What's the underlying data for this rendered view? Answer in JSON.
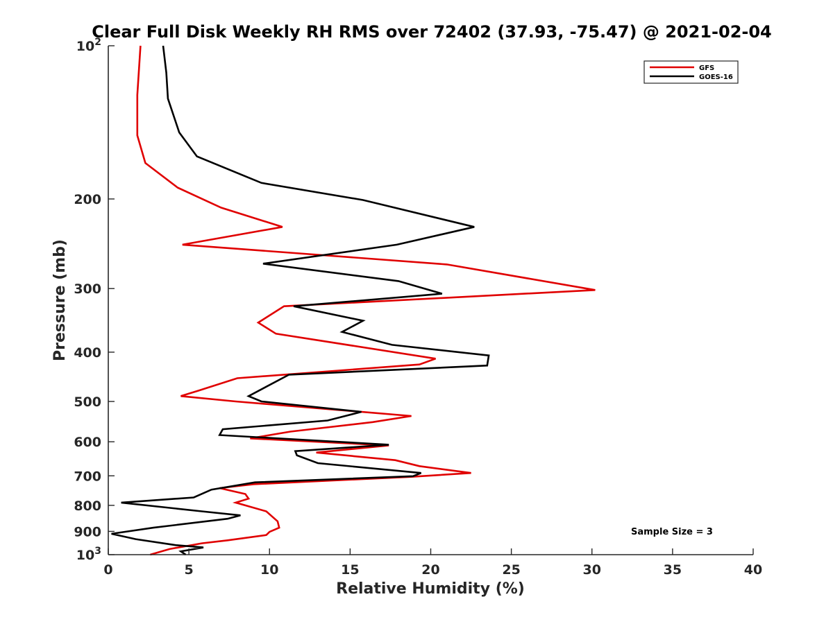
{
  "chart_data": {
    "type": "line",
    "title": "Clear Full Disk Weekly RH RMS over 72402 (37.93, -75.47) @ 2021-02-04",
    "xlabel": "Relative Humidity (%)",
    "ylabel": "Pressure (mb)",
    "xlim": [
      0,
      40
    ],
    "ylim": [
      100,
      1000
    ],
    "yscale": "log",
    "y_reversed": true,
    "grid": false,
    "x_ticks": [
      0,
      5,
      10,
      15,
      20,
      25,
      30,
      35,
      40
    ],
    "y_ticks": [
      {
        "value": 100,
        "base": "10",
        "exp": "2"
      },
      {
        "value": 200,
        "label": "200"
      },
      {
        "value": 300,
        "label": "300"
      },
      {
        "value": 400,
        "label": "400"
      },
      {
        "value": 500,
        "label": "500"
      },
      {
        "value": 600,
        "label": "600"
      },
      {
        "value": 700,
        "label": "700"
      },
      {
        "value": 800,
        "label": "800"
      },
      {
        "value": 900,
        "label": "900"
      },
      {
        "value": 1000,
        "base": "10",
        "exp": "3"
      }
    ],
    "legend_position": "top-right",
    "annotation": "Sample Size = 3",
    "series": [
      {
        "name": "GFS",
        "color": "#e00000",
        "points": [
          [
            2.0,
            100
          ],
          [
            1.8,
            125
          ],
          [
            1.8,
            150
          ],
          [
            2.3,
            170
          ],
          [
            4.3,
            190
          ],
          [
            7.0,
            208
          ],
          [
            10.8,
            227
          ],
          [
            4.6,
            246
          ],
          [
            21.0,
            269
          ],
          [
            30.2,
            302
          ],
          [
            10.9,
            325
          ],
          [
            9.3,
            350
          ],
          [
            10.4,
            368
          ],
          [
            20.3,
            412
          ],
          [
            19.3,
            423
          ],
          [
            8.0,
            450
          ],
          [
            5.6,
            476
          ],
          [
            4.5,
            488
          ],
          [
            7.9,
            500
          ],
          [
            18.8,
            534
          ],
          [
            16.4,
            549
          ],
          [
            11.3,
            573
          ],
          [
            8.8,
            591
          ],
          [
            17.4,
            610
          ],
          [
            12.9,
            630
          ],
          [
            17.8,
            652
          ],
          [
            19.3,
            670
          ],
          [
            22.5,
            691
          ],
          [
            18.8,
            703
          ],
          [
            9.0,
            727
          ],
          [
            6.9,
            740
          ],
          [
            8.5,
            760
          ],
          [
            8.7,
            776
          ],
          [
            7.9,
            790
          ],
          [
            9.8,
            822
          ],
          [
            10.5,
            860
          ],
          [
            10.6,
            885
          ],
          [
            10.0,
            902
          ],
          [
            9.8,
            915
          ],
          [
            7.4,
            937
          ],
          [
            5.8,
            950
          ],
          [
            3.8,
            975
          ],
          [
            2.6,
            1000
          ]
        ]
      },
      {
        "name": "GOES-16",
        "color": "#000000",
        "points": [
          [
            3.4,
            100
          ],
          [
            3.6,
            113
          ],
          [
            3.7,
            127
          ],
          [
            4.4,
            148
          ],
          [
            5.5,
            165
          ],
          [
            9.5,
            186
          ],
          [
            15.8,
            201
          ],
          [
            22.7,
            227
          ],
          [
            17.9,
            246
          ],
          [
            9.6,
            268
          ],
          [
            18.0,
            290
          ],
          [
            20.7,
            307
          ],
          [
            11.5,
            325
          ],
          [
            15.8,
            347
          ],
          [
            14.5,
            365
          ],
          [
            17.6,
            387
          ],
          [
            23.6,
            406
          ],
          [
            23.5,
            425
          ],
          [
            11.2,
            443
          ],
          [
            8.7,
            488
          ],
          [
            9.5,
            500
          ],
          [
            15.7,
            524
          ],
          [
            13.6,
            545
          ],
          [
            7.1,
            567
          ],
          [
            6.9,
            582
          ],
          [
            17.4,
            608
          ],
          [
            11.6,
            626
          ],
          [
            11.7,
            638
          ],
          [
            13.0,
            661
          ],
          [
            19.4,
            691
          ],
          [
            18.9,
            701
          ],
          [
            9.1,
            721
          ],
          [
            6.4,
            745
          ],
          [
            5.3,
            772
          ],
          [
            0.8,
            790
          ],
          [
            5.8,
            822
          ],
          [
            8.2,
            837
          ],
          [
            7.4,
            850
          ],
          [
            2.8,
            885
          ],
          [
            0.2,
            910
          ],
          [
            1.7,
            932
          ],
          [
            4.2,
            958
          ],
          [
            5.9,
            968
          ],
          [
            4.5,
            985
          ],
          [
            4.8,
            1000
          ]
        ]
      }
    ]
  }
}
